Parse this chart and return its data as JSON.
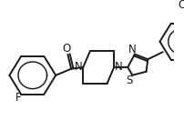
{
  "bg_color": "#ffffff",
  "line_color": "#1a1a1a",
  "line_width": 1.4,
  "figsize": [
    2.03,
    1.43
  ],
  "dpi": 100,
  "xlim": [
    0,
    203
  ],
  "ylim": [
    0,
    143
  ],
  "font_size": 8.5
}
